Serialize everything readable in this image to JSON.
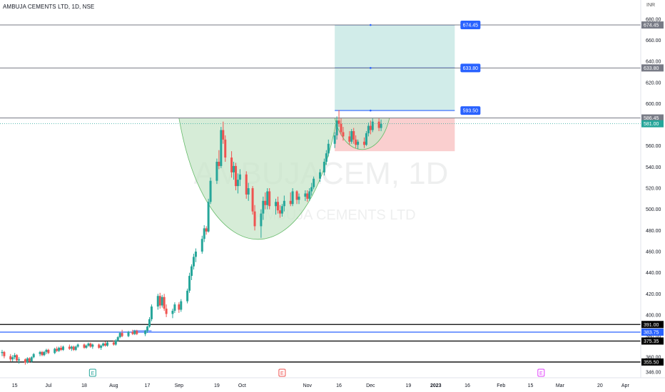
{
  "header": {
    "symbol_title": "AMBUJA CEMENTS LTD, 1D, NSE",
    "currency": "INR"
  },
  "watermark": {
    "ticker": "AMBUJACEM, 1D",
    "company": "AMBUJA CEMENTS LTD"
  },
  "colors": {
    "up": "#26a69a",
    "down": "#ef5350",
    "blue_line": "#2962ff",
    "target_zone": "#b2dfdb",
    "stop_zone": "#f8bbbb",
    "cup_fill": "#c8e6c9"
  },
  "chart_data": {
    "type": "candlestick",
    "y_axis": {
      "ticks": [
        680,
        660,
        640,
        620,
        600,
        580,
        560,
        540,
        520,
        500,
        480,
        460,
        440,
        420,
        400,
        380,
        360,
        346
      ],
      "tick_labels": [
        "680.00",
        "660.00",
        "640.00",
        "620.00",
        "600.00",
        "580.00",
        "560.00",
        "540.00",
        "520.00",
        "500.00",
        "480.00",
        "460.00",
        "440.00",
        "420.00",
        "400.00",
        "380.00",
        "360.00",
        "346.00"
      ]
    },
    "x_axis": {
      "labels": [
        "15",
        "Jul",
        "18",
        "Aug",
        "17",
        "Sep",
        "19",
        "Oct",
        "Nov",
        "16",
        "Dec",
        "19",
        "2023",
        "16",
        "Feb",
        "15",
        "Mar",
        "20",
        "Apr"
      ],
      "dates": [
        "2022-06-15",
        "2022-07-01",
        "2022-07-18",
        "2022-08-01",
        "2022-08-17",
        "2022-09-01",
        "2022-09-19",
        "2022-10-01",
        "2022-11-01",
        "2022-11-16",
        "2022-12-01",
        "2022-12-19",
        "2023-01-01",
        "2023-01-16",
        "2023-02-01",
        "2023-02-15",
        "2023-03-01",
        "2023-03-20",
        "2023-04-01"
      ],
      "range": [
        "2022-06-08",
        "2023-04-08"
      ]
    },
    "ylim": [
      346,
      690
    ],
    "horizontal_lines": [
      {
        "value": 674.45,
        "label": "674.45",
        "style": "gray"
      },
      {
        "value": 633.8,
        "label": "633.80",
        "style": "gray"
      },
      {
        "value": 586.45,
        "label": "586.45",
        "style": "gray"
      },
      {
        "value": 391.0,
        "label": "391.00",
        "style": "black"
      },
      {
        "value": 383.75,
        "label": "383.75",
        "style": "blue"
      },
      {
        "value": 375.35,
        "label": "375.35",
        "style": "black"
      },
      {
        "value": 355.5,
        "label": "355.50",
        "style": "black"
      }
    ],
    "current_price": {
      "value": 581.0,
      "label": "581.00"
    },
    "position": {
      "entry": 593.5,
      "entry_label": "593.50",
      "target1": 633.8,
      "target1_label": "633.80",
      "target2": 674.45,
      "target2_label": "674.45",
      "stop": 555,
      "start": "2022-11-14",
      "end": "2023-01-10"
    },
    "patterns": [
      {
        "name": "cup",
        "start": "2022-09-01",
        "end": "2022-11-15",
        "rim": 586.45,
        "bottom": 473
      },
      {
        "name": "handle",
        "start": "2022-11-14",
        "end": "2022-12-10",
        "rim": 586.45,
        "bottom": 557
      }
    ],
    "events": [
      {
        "date": "2022-07-22",
        "type": "earnings",
        "letter": "E"
      },
      {
        "date": "2022-10-20",
        "type": "earnings",
        "letter": "E"
      },
      {
        "date": "2023-02-20",
        "type": "dividend",
        "letter": "E"
      }
    ],
    "candles": [
      {
        "d": "2022-06-09",
        "o": 364,
        "h": 367,
        "l": 361,
        "c": 365
      },
      {
        "d": "2022-06-10",
        "o": 365,
        "h": 366,
        "l": 359,
        "c": 361
      },
      {
        "d": "2022-06-13",
        "o": 361,
        "h": 363,
        "l": 356,
        "c": 358
      },
      {
        "d": "2022-06-14",
        "o": 358,
        "h": 362,
        "l": 356,
        "c": 360
      },
      {
        "d": "2022-06-15",
        "o": 360,
        "h": 364,
        "l": 358,
        "c": 362
      },
      {
        "d": "2022-06-16",
        "o": 362,
        "h": 363,
        "l": 356,
        "c": 357
      },
      {
        "d": "2022-06-17",
        "o": 357,
        "h": 360,
        "l": 354,
        "c": 358
      },
      {
        "d": "2022-06-20",
        "o": 358,
        "h": 359,
        "l": 353,
        "c": 355
      },
      {
        "d": "2022-06-21",
        "o": 355,
        "h": 360,
        "l": 354,
        "c": 359
      },
      {
        "d": "2022-06-22",
        "o": 359,
        "h": 360,
        "l": 355,
        "c": 356
      },
      {
        "d": "2022-06-23",
        "o": 356,
        "h": 361,
        "l": 355,
        "c": 360
      },
      {
        "d": "2022-06-24",
        "o": 360,
        "h": 364,
        "l": 359,
        "c": 363
      },
      {
        "d": "2022-06-27",
        "o": 363,
        "h": 366,
        "l": 361,
        "c": 365
      },
      {
        "d": "2022-06-28",
        "o": 365,
        "h": 366,
        "l": 361,
        "c": 362
      },
      {
        "d": "2022-06-29",
        "o": 362,
        "h": 366,
        "l": 361,
        "c": 365
      },
      {
        "d": "2022-06-30",
        "o": 365,
        "h": 368,
        "l": 363,
        "c": 367
      },
      {
        "d": "2022-07-01",
        "o": 367,
        "h": 368,
        "l": 363,
        "c": 364
      },
      {
        "d": "2022-07-04",
        "o": 364,
        "h": 369,
        "l": 363,
        "c": 368
      },
      {
        "d": "2022-07-05",
        "o": 368,
        "h": 370,
        "l": 365,
        "c": 366
      },
      {
        "d": "2022-07-06",
        "o": 366,
        "h": 370,
        "l": 365,
        "c": 369
      },
      {
        "d": "2022-07-07",
        "o": 369,
        "h": 371,
        "l": 366,
        "c": 367
      },
      {
        "d": "2022-07-08",
        "o": 367,
        "h": 371,
        "l": 366,
        "c": 370
      },
      {
        "d": "2022-07-11",
        "o": 370,
        "h": 372,
        "l": 367,
        "c": 368
      },
      {
        "d": "2022-07-12",
        "o": 368,
        "h": 371,
        "l": 366,
        "c": 370
      },
      {
        "d": "2022-07-13",
        "o": 370,
        "h": 371,
        "l": 366,
        "c": 367
      },
      {
        "d": "2022-07-14",
        "o": 367,
        "h": 371,
        "l": 366,
        "c": 370
      },
      {
        "d": "2022-07-15",
        "o": 370,
        "h": 373,
        "l": 369,
        "c": 372
      },
      {
        "d": "2022-07-18",
        "o": 372,
        "h": 373,
        "l": 368,
        "c": 369
      },
      {
        "d": "2022-07-19",
        "o": 369,
        "h": 372,
        "l": 368,
        "c": 371
      },
      {
        "d": "2022-07-20",
        "o": 371,
        "h": 374,
        "l": 370,
        "c": 373
      },
      {
        "d": "2022-07-21",
        "o": 373,
        "h": 374,
        "l": 369,
        "c": 370
      },
      {
        "d": "2022-07-22",
        "o": 370,
        "h": 373,
        "l": 368,
        "c": 372
      },
      {
        "d": "2022-07-25",
        "o": 372,
        "h": 373,
        "l": 368,
        "c": 369
      },
      {
        "d": "2022-07-26",
        "o": 369,
        "h": 372,
        "l": 367,
        "c": 371
      },
      {
        "d": "2022-07-27",
        "o": 371,
        "h": 374,
        "l": 370,
        "c": 373
      },
      {
        "d": "2022-07-28",
        "o": 373,
        "h": 375,
        "l": 370,
        "c": 371
      },
      {
        "d": "2022-07-29",
        "o": 371,
        "h": 375,
        "l": 370,
        "c": 374
      },
      {
        "d": "2022-08-01",
        "o": 374,
        "h": 376,
        "l": 371,
        "c": 372
      },
      {
        "d": "2022-08-02",
        "o": 372,
        "h": 377,
        "l": 371,
        "c": 376
      },
      {
        "d": "2022-08-03",
        "o": 376,
        "h": 380,
        "l": 375,
        "c": 379
      },
      {
        "d": "2022-08-04",
        "o": 379,
        "h": 384,
        "l": 378,
        "c": 383
      },
      {
        "d": "2022-08-05",
        "o": 383,
        "h": 386,
        "l": 379,
        "c": 380
      },
      {
        "d": "2022-08-08",
        "o": 380,
        "h": 385,
        "l": 379,
        "c": 384
      },
      {
        "d": "2022-08-10",
        "o": 384,
        "h": 386,
        "l": 381,
        "c": 382
      },
      {
        "d": "2022-08-11",
        "o": 382,
        "h": 386,
        "l": 381,
        "c": 385
      },
      {
        "d": "2022-08-12",
        "o": 385,
        "h": 386,
        "l": 381,
        "c": 382
      },
      {
        "d": "2022-08-16",
        "o": 382,
        "h": 386,
        "l": 380,
        "c": 385
      },
      {
        "d": "2022-08-17",
        "o": 385,
        "h": 390,
        "l": 383,
        "c": 389
      },
      {
        "d": "2022-08-18",
        "o": 389,
        "h": 398,
        "l": 388,
        "c": 396
      },
      {
        "d": "2022-08-19",
        "o": 396,
        "h": 410,
        "l": 394,
        "c": 408
      },
      {
        "d": "2022-08-22",
        "o": 408,
        "h": 420,
        "l": 405,
        "c": 418
      },
      {
        "d": "2022-08-23",
        "o": 418,
        "h": 421,
        "l": 406,
        "c": 409
      },
      {
        "d": "2022-08-24",
        "o": 409,
        "h": 419,
        "l": 407,
        "c": 417
      },
      {
        "d": "2022-08-25",
        "o": 417,
        "h": 420,
        "l": 404,
        "c": 406
      },
      {
        "d": "2022-08-26",
        "o": 406,
        "h": 410,
        "l": 398,
        "c": 401
      },
      {
        "d": "2022-08-29",
        "o": 401,
        "h": 406,
        "l": 397,
        "c": 404
      },
      {
        "d": "2022-08-30",
        "o": 404,
        "h": 412,
        "l": 402,
        "c": 410
      },
      {
        "d": "2022-09-01",
        "o": 410,
        "h": 412,
        "l": 402,
        "c": 405
      },
      {
        "d": "2022-09-02",
        "o": 405,
        "h": 415,
        "l": 403,
        "c": 413
      },
      {
        "d": "2022-09-05",
        "o": 413,
        "h": 425,
        "l": 411,
        "c": 423
      },
      {
        "d": "2022-09-06",
        "o": 423,
        "h": 440,
        "l": 421,
        "c": 437
      },
      {
        "d": "2022-09-07",
        "o": 437,
        "h": 448,
        "l": 433,
        "c": 446
      },
      {
        "d": "2022-09-08",
        "o": 446,
        "h": 458,
        "l": 443,
        "c": 455
      },
      {
        "d": "2022-09-09",
        "o": 455,
        "h": 463,
        "l": 450,
        "c": 460
      },
      {
        "d": "2022-09-12",
        "o": 460,
        "h": 475,
        "l": 458,
        "c": 472
      },
      {
        "d": "2022-09-13",
        "o": 472,
        "h": 485,
        "l": 469,
        "c": 482
      },
      {
        "d": "2022-09-14",
        "o": 482,
        "h": 484,
        "l": 476,
        "c": 479
      },
      {
        "d": "2022-09-15",
        "o": 479,
        "h": 510,
        "l": 478,
        "c": 507
      },
      {
        "d": "2022-09-16",
        "o": 507,
        "h": 530,
        "l": 505,
        "c": 527
      },
      {
        "d": "2022-09-19",
        "o": 527,
        "h": 548,
        "l": 524,
        "c": 545
      },
      {
        "d": "2022-09-20",
        "o": 545,
        "h": 556,
        "l": 538,
        "c": 541
      },
      {
        "d": "2022-09-21",
        "o": 541,
        "h": 578,
        "l": 539,
        "c": 575
      },
      {
        "d": "2022-09-22",
        "o": 575,
        "h": 583,
        "l": 562,
        "c": 566
      },
      {
        "d": "2022-09-23",
        "o": 566,
        "h": 570,
        "l": 545,
        "c": 549
      },
      {
        "d": "2022-09-26",
        "o": 549,
        "h": 555,
        "l": 530,
        "c": 535
      },
      {
        "d": "2022-09-27",
        "o": 535,
        "h": 545,
        "l": 528,
        "c": 541
      },
      {
        "d": "2022-09-28",
        "o": 541,
        "h": 544,
        "l": 518,
        "c": 522
      },
      {
        "d": "2022-09-29",
        "o": 522,
        "h": 534,
        "l": 515,
        "c": 528
      },
      {
        "d": "2022-09-30",
        "o": 528,
        "h": 538,
        "l": 522,
        "c": 533
      },
      {
        "d": "2022-10-03",
        "o": 533,
        "h": 536,
        "l": 510,
        "c": 514
      },
      {
        "d": "2022-10-04",
        "o": 514,
        "h": 525,
        "l": 508,
        "c": 520
      },
      {
        "d": "2022-10-06",
        "o": 520,
        "h": 522,
        "l": 495,
        "c": 498
      },
      {
        "d": "2022-10-07",
        "o": 498,
        "h": 504,
        "l": 480,
        "c": 484
      },
      {
        "d": "2022-10-10",
        "o": 484,
        "h": 500,
        "l": 473,
        "c": 496
      },
      {
        "d": "2022-10-11",
        "o": 496,
        "h": 512,
        "l": 490,
        "c": 508
      },
      {
        "d": "2022-10-12",
        "o": 508,
        "h": 516,
        "l": 500,
        "c": 504
      },
      {
        "d": "2022-10-13",
        "o": 504,
        "h": 520,
        "l": 500,
        "c": 517
      },
      {
        "d": "2022-10-14",
        "o": 517,
        "h": 520,
        "l": 500,
        "c": 503
      },
      {
        "d": "2022-10-17",
        "o": 503,
        "h": 510,
        "l": 495,
        "c": 507
      },
      {
        "d": "2022-10-18",
        "o": 507,
        "h": 512,
        "l": 496,
        "c": 499
      },
      {
        "d": "2022-10-19",
        "o": 499,
        "h": 504,
        "l": 492,
        "c": 496
      },
      {
        "d": "2022-10-20",
        "o": 496,
        "h": 505,
        "l": 493,
        "c": 503
      },
      {
        "d": "2022-10-21",
        "o": 503,
        "h": 513,
        "l": 498,
        "c": 508
      },
      {
        "d": "2022-10-24",
        "o": 508,
        "h": 516,
        "l": 503,
        "c": 505
      },
      {
        "d": "2022-10-25",
        "o": 505,
        "h": 520,
        "l": 503,
        "c": 517
      },
      {
        "d": "2022-10-27",
        "o": 517,
        "h": 518,
        "l": 505,
        "c": 509
      },
      {
        "d": "2022-10-28",
        "o": 509,
        "h": 515,
        "l": 505,
        "c": 512
      },
      {
        "d": "2022-10-31",
        "o": 512,
        "h": 518,
        "l": 508,
        "c": 515
      },
      {
        "d": "2022-11-01",
        "o": 515,
        "h": 518,
        "l": 507,
        "c": 510
      },
      {
        "d": "2022-11-02",
        "o": 510,
        "h": 520,
        "l": 508,
        "c": 517
      },
      {
        "d": "2022-11-03",
        "o": 517,
        "h": 525,
        "l": 513,
        "c": 521
      },
      {
        "d": "2022-11-04",
        "o": 521,
        "h": 531,
        "l": 519,
        "c": 529
      },
      {
        "d": "2022-11-07",
        "o": 529,
        "h": 538,
        "l": 526,
        "c": 535
      },
      {
        "d": "2022-11-09",
        "o": 535,
        "h": 548,
        "l": 532,
        "c": 545
      },
      {
        "d": "2022-11-10",
        "o": 545,
        "h": 556,
        "l": 542,
        "c": 553
      },
      {
        "d": "2022-11-11",
        "o": 553,
        "h": 566,
        "l": 550,
        "c": 562
      },
      {
        "d": "2022-11-14",
        "o": 562,
        "h": 573,
        "l": 558,
        "c": 570
      },
      {
        "d": "2022-11-15",
        "o": 570,
        "h": 588,
        "l": 566,
        "c": 584
      },
      {
        "d": "2022-11-16",
        "o": 584,
        "h": 594,
        "l": 578,
        "c": 581
      },
      {
        "d": "2022-11-17",
        "o": 581,
        "h": 586,
        "l": 570,
        "c": 573
      },
      {
        "d": "2022-11-18",
        "o": 573,
        "h": 578,
        "l": 565,
        "c": 569
      },
      {
        "d": "2022-11-21",
        "o": 569,
        "h": 574,
        "l": 561,
        "c": 564
      },
      {
        "d": "2022-11-22",
        "o": 564,
        "h": 576,
        "l": 562,
        "c": 574
      },
      {
        "d": "2022-11-23",
        "o": 574,
        "h": 577,
        "l": 562,
        "c": 566
      },
      {
        "d": "2022-11-24",
        "o": 566,
        "h": 570,
        "l": 558,
        "c": 561
      },
      {
        "d": "2022-11-25",
        "o": 561,
        "h": 566,
        "l": 557,
        "c": 564
      },
      {
        "d": "2022-11-28",
        "o": 564,
        "h": 568,
        "l": 558,
        "c": 561
      },
      {
        "d": "2022-11-29",
        "o": 561,
        "h": 574,
        "l": 560,
        "c": 572
      },
      {
        "d": "2022-11-30",
        "o": 572,
        "h": 582,
        "l": 569,
        "c": 579
      },
      {
        "d": "2022-12-01",
        "o": 579,
        "h": 584,
        "l": 571,
        "c": 575
      },
      {
        "d": "2022-12-02",
        "o": 575,
        "h": 586,
        "l": 573,
        "c": 583
      },
      {
        "d": "2022-12-05",
        "o": 583,
        "h": 586,
        "l": 574,
        "c": 577
      },
      {
        "d": "2022-12-06",
        "o": 577,
        "h": 585,
        "l": 574,
        "c": 581
      }
    ]
  }
}
